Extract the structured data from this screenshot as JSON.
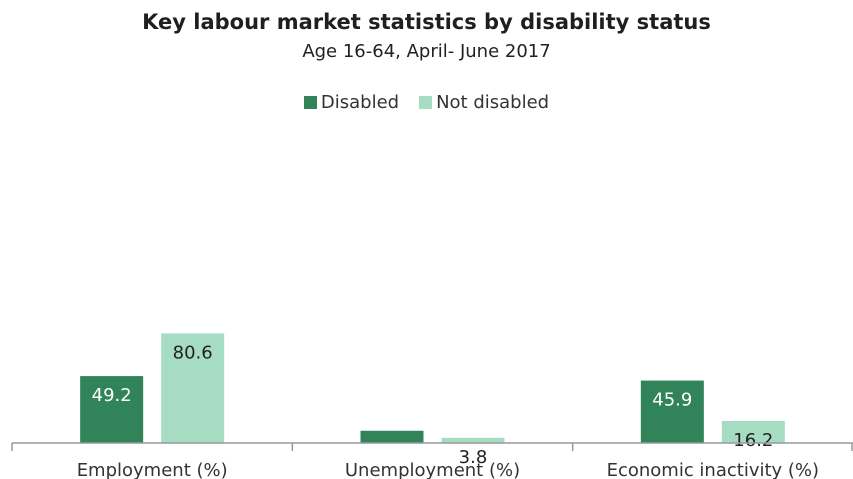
{
  "colors": {
    "disabled": "#31845a",
    "not_disabled": "#a6dcc2",
    "axis": "#999999"
  },
  "chart_data": {
    "type": "bar",
    "title": "Key labour market statistics by disability status",
    "subtitle": "Age 16-64, April- June 2017",
    "categories": [
      "Employment (%)",
      "Unemployment (%)",
      "Economic inactivity (%)"
    ],
    "series": [
      {
        "name": "Disabled",
        "values": [
          49.2,
          9.0,
          45.9
        ],
        "labels": [
          "49.2",
          "9.0",
          "45.9"
        ]
      },
      {
        "name": "Not disabled",
        "values": [
          80.6,
          3.8,
          16.2
        ],
        "labels": [
          "80.6",
          "3.8",
          "16.2"
        ]
      }
    ],
    "ylim": [
      0,
      90
    ],
    "grid": false,
    "legend_position": "top-center"
  }
}
